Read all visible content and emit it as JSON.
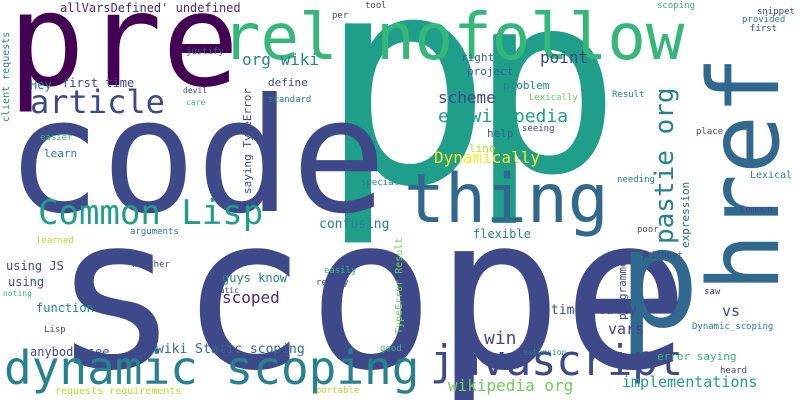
{
  "palette": {
    "dark_purple": "#440154",
    "indigo": "#482878",
    "slate_blue": "#3e4989",
    "steel_blue": "#31688e",
    "teal": "#26828e",
    "sea_green": "#1f9e89",
    "green": "#35b779",
    "light_green": "#6ece58",
    "yellow_green": "#b5de2b",
    "yellow": "#fde725"
  },
  "words": [
    "p",
    "p",
    "scope",
    "code",
    "pre",
    "href",
    "rel nofollow",
    "thing",
    "dynamic scoping",
    "p",
    "javascript",
    "Common Lisp",
    "article",
    "pastie org",
    "en wikipedia",
    "allVarsDefined' undefined",
    "org wiki",
    "scheme",
    "Dynamically",
    "wikipedia org",
    "implementations",
    "scoped",
    "wiki Static_scoping",
    "win",
    "point",
    "vars",
    "vs",
    "time really",
    "guys know",
    "confusing",
    "function",
    "using JS",
    "using",
    "anybody see",
    "client requests",
    "first time",
    "Hey",
    "define",
    "saying TypeError",
    "project",
    "problem",
    "right",
    "help",
    "line",
    "TypeError Result",
    "flexible",
    "expression",
    "programmer",
    "error saying",
    "Dynamic_scoping",
    "requests requirements",
    "learn",
    "easier",
    "justify",
    "devil",
    "care",
    "standard",
    "seeing",
    "Lexically",
    "Result",
    "place",
    "Lexical",
    "Common",
    "snippet",
    "provided",
    "first",
    "tool",
    "per",
    "scoping",
    "needing",
    "special",
    "arguments",
    "whether",
    "noting",
    "learned",
    "Lisp",
    "easily",
    "really",
    "static",
    "without",
    "poor",
    "saw",
    "heard",
    "extension",
    "good",
    "portable"
  ]
}
